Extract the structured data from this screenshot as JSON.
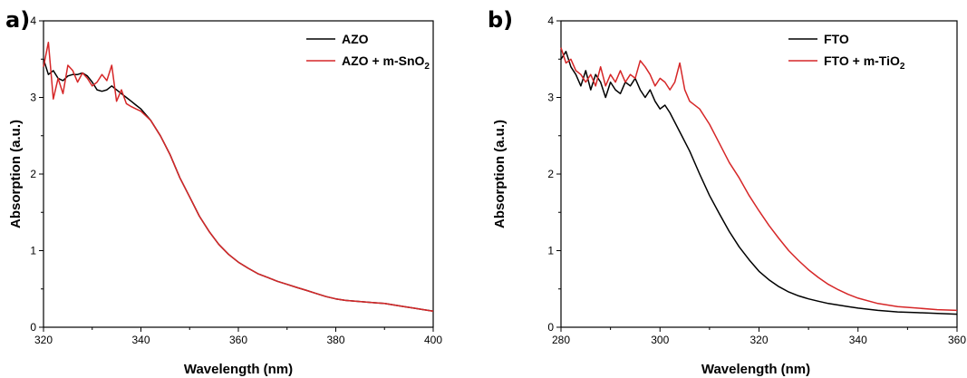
{
  "colors": {
    "black_series": "#000000",
    "red_series": "#d62728"
  },
  "chart_data": [
    {
      "type": "line",
      "panel_label": "a)",
      "xlabel": "Wavelength (nm)",
      "ylabel": "Absorption (a.u.)",
      "xlim": [
        320,
        400
      ],
      "ylim": [
        0,
        4
      ],
      "xticks": [
        320,
        340,
        360,
        380,
        400
      ],
      "yticks": [
        0,
        1,
        2,
        3,
        4
      ],
      "legend_position": "top-right",
      "series": [
        {
          "name": "AZO",
          "color": "#000000",
          "x": [
            320,
            321,
            322,
            323,
            324,
            325,
            326,
            327,
            328,
            329,
            330,
            331,
            332,
            333,
            334,
            335,
            336,
            337,
            338,
            339,
            340,
            342,
            344,
            346,
            348,
            350,
            352,
            354,
            356,
            358,
            360,
            362,
            364,
            366,
            368,
            370,
            372,
            374,
            376,
            378,
            380,
            382,
            384,
            386,
            388,
            390,
            392,
            394,
            396,
            398,
            400
          ],
          "y": [
            3.5,
            3.3,
            3.35,
            3.25,
            3.22,
            3.28,
            3.3,
            3.3,
            3.32,
            3.28,
            3.2,
            3.1,
            3.08,
            3.1,
            3.15,
            3.1,
            3.05,
            3.0,
            2.95,
            2.9,
            2.85,
            2.7,
            2.5,
            2.25,
            1.95,
            1.7,
            1.45,
            1.25,
            1.08,
            0.95,
            0.85,
            0.77,
            0.7,
            0.65,
            0.6,
            0.56,
            0.52,
            0.48,
            0.44,
            0.4,
            0.37,
            0.35,
            0.34,
            0.33,
            0.32,
            0.31,
            0.29,
            0.27,
            0.25,
            0.23,
            0.21
          ]
        },
        {
          "name": "AZO + m-SnO",
          "name_subscript": "2",
          "color": "#d62728",
          "x": [
            320,
            321,
            322,
            323,
            324,
            325,
            326,
            327,
            328,
            329,
            330,
            331,
            332,
            333,
            334,
            335,
            336,
            337,
            338,
            339,
            340,
            342,
            344,
            346,
            348,
            350,
            352,
            354,
            356,
            358,
            360,
            362,
            364,
            366,
            368,
            370,
            372,
            374,
            376,
            378,
            380,
            382,
            384,
            386,
            388,
            390,
            392,
            394,
            396,
            398,
            400
          ],
          "y": [
            3.4,
            3.72,
            2.98,
            3.25,
            3.05,
            3.42,
            3.35,
            3.2,
            3.32,
            3.25,
            3.15,
            3.2,
            3.3,
            3.22,
            3.42,
            2.95,
            3.1,
            2.92,
            2.88,
            2.85,
            2.82,
            2.7,
            2.5,
            2.25,
            1.95,
            1.7,
            1.45,
            1.25,
            1.08,
            0.95,
            0.85,
            0.77,
            0.7,
            0.65,
            0.6,
            0.56,
            0.52,
            0.48,
            0.44,
            0.4,
            0.37,
            0.35,
            0.34,
            0.33,
            0.32,
            0.31,
            0.29,
            0.27,
            0.25,
            0.23,
            0.21
          ]
        }
      ]
    },
    {
      "type": "line",
      "panel_label": "b)",
      "xlabel": "Wavelength (nm)",
      "ylabel": "Absorption (a.u.)",
      "xlim": [
        280,
        360
      ],
      "ylim": [
        0,
        4
      ],
      "xticks": [
        280,
        300,
        320,
        340,
        360
      ],
      "yticks": [
        0,
        1,
        2,
        3,
        4
      ],
      "legend_position": "top-right",
      "series": [
        {
          "name": "FTO",
          "color": "#000000",
          "x": [
            280,
            281,
            282,
            283,
            284,
            285,
            286,
            287,
            288,
            289,
            290,
            291,
            292,
            293,
            294,
            295,
            296,
            297,
            298,
            299,
            300,
            301,
            302,
            304,
            306,
            308,
            310,
            312,
            314,
            316,
            318,
            320,
            322,
            324,
            326,
            328,
            330,
            332,
            334,
            336,
            338,
            340,
            344,
            348,
            352,
            356,
            360
          ],
          "y": [
            3.5,
            3.6,
            3.4,
            3.3,
            3.15,
            3.35,
            3.1,
            3.3,
            3.2,
            3.0,
            3.2,
            3.1,
            3.05,
            3.2,
            3.15,
            3.25,
            3.1,
            3.0,
            3.1,
            2.95,
            2.85,
            2.9,
            2.8,
            2.55,
            2.3,
            2.0,
            1.72,
            1.48,
            1.25,
            1.05,
            0.88,
            0.73,
            0.62,
            0.53,
            0.46,
            0.41,
            0.37,
            0.34,
            0.31,
            0.29,
            0.27,
            0.25,
            0.22,
            0.2,
            0.19,
            0.18,
            0.17
          ]
        },
        {
          "name": "FTO + m-TiO",
          "name_subscript": "2",
          "color": "#d62728",
          "x": [
            280,
            281,
            282,
            283,
            284,
            285,
            286,
            287,
            288,
            289,
            290,
            291,
            292,
            293,
            294,
            295,
            296,
            297,
            298,
            299,
            300,
            301,
            302,
            303,
            304,
            305,
            306,
            308,
            310,
            312,
            314,
            316,
            318,
            320,
            322,
            324,
            326,
            328,
            330,
            332,
            334,
            336,
            338,
            340,
            344,
            348,
            352,
            356,
            360
          ],
          "y": [
            3.65,
            3.45,
            3.5,
            3.35,
            3.3,
            3.2,
            3.3,
            3.15,
            3.4,
            3.15,
            3.3,
            3.2,
            3.35,
            3.2,
            3.3,
            3.25,
            3.48,
            3.4,
            3.3,
            3.15,
            3.25,
            3.2,
            3.1,
            3.2,
            3.45,
            3.1,
            2.95,
            2.85,
            2.65,
            2.4,
            2.15,
            1.95,
            1.72,
            1.52,
            1.33,
            1.16,
            1.0,
            0.87,
            0.75,
            0.65,
            0.56,
            0.49,
            0.43,
            0.38,
            0.31,
            0.27,
            0.25,
            0.23,
            0.22
          ]
        }
      ]
    }
  ]
}
